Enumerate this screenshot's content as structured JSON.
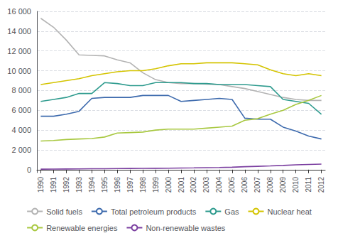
{
  "chart_data": {
    "type": "line",
    "x": [
      1990,
      1991,
      1992,
      1993,
      1994,
      1995,
      1996,
      1997,
      1998,
      1999,
      2000,
      2001,
      2002,
      2003,
      2004,
      2005,
      2006,
      2007,
      2008,
      2009,
      2010,
      2011,
      2012
    ],
    "series": [
      {
        "name": "Solid fuels",
        "color": "#b3b3b3",
        "values": [
          15300,
          14400,
          13100,
          11600,
          11550,
          11500,
          11100,
          10800,
          9800,
          9100,
          8800,
          8700,
          8700,
          8650,
          8600,
          8400,
          8200,
          7900,
          7600,
          7300,
          7100,
          7000,
          7000
        ]
      },
      {
        "name": "Total petroleum products",
        "color": "#3d6aad",
        "values": [
          5400,
          5400,
          5600,
          5900,
          7200,
          7300,
          7300,
          7300,
          7500,
          7500,
          7500,
          6900,
          7000,
          7100,
          7200,
          7100,
          5200,
          5100,
          5100,
          4300,
          3900,
          3400,
          3100
        ]
      },
      {
        "name": "Gas",
        "color": "#2e9b8e",
        "values": [
          6900,
          7100,
          7300,
          7700,
          7700,
          8800,
          8700,
          8500,
          8500,
          8800,
          8800,
          8800,
          8700,
          8700,
          8600,
          8600,
          8600,
          8500,
          8400,
          7100,
          6900,
          6700,
          5600
        ]
      },
      {
        "name": "Nuclear heat",
        "color": "#d4c400",
        "values": [
          8600,
          8800,
          9000,
          9200,
          9500,
          9700,
          9900,
          10000,
          10000,
          10200,
          10500,
          10700,
          10700,
          10800,
          10800,
          10800,
          10700,
          10600,
          10100,
          9700,
          9500,
          9700,
          9500
        ]
      },
      {
        "name": "Renewable energies",
        "color": "#a8c840",
        "values": [
          2900,
          2950,
          3050,
          3100,
          3150,
          3300,
          3700,
          3750,
          3800,
          4000,
          4100,
          4100,
          4100,
          4200,
          4300,
          4400,
          5000,
          5150,
          5600,
          6000,
          6600,
          7000,
          7500
        ]
      },
      {
        "name": "Non-renewable wastes",
        "color": "#7b3fa0",
        "values": [
          50,
          60,
          70,
          80,
          90,
          100,
          110,
          120,
          130,
          140,
          150,
          170,
          180,
          200,
          220,
          250,
          300,
          340,
          380,
          430,
          490,
          530,
          560
        ]
      }
    ],
    "xlim": [
      1989.7,
      2012.3
    ],
    "xticks": [
      1990,
      1991,
      1992,
      1993,
      1994,
      1995,
      1996,
      1997,
      1998,
      1999,
      2000,
      2001,
      2002,
      2003,
      2004,
      2005,
      2006,
      2007,
      2008,
      2009,
      2010,
      2011,
      2012
    ],
    "ylim": [
      -300,
      16000
    ],
    "yticks": [
      0,
      {
        "value": 2000,
        "label": "2 000"
      },
      {
        "value": 4000,
        "label": "4 000"
      },
      {
        "value": 6000,
        "label": "6 000"
      },
      {
        "value": 8000,
        "label": "8 000"
      },
      {
        "value": 10000,
        "label": "10 000"
      },
      {
        "value": 12000,
        "label": "12 000"
      },
      {
        "value": 14000,
        "label": "14 000"
      },
      {
        "value": 16000,
        "label": "16 000"
      }
    ],
    "grid": true,
    "legend": "bottom"
  }
}
